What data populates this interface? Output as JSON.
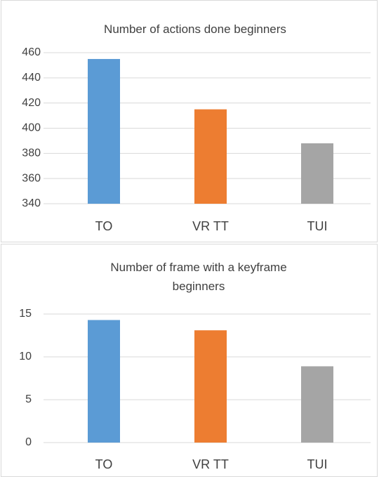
{
  "chart_data": [
    {
      "type": "bar",
      "title": "Number of actions done beginners",
      "categories": [
        "TO",
        "VR TT",
        "TUI"
      ],
      "values": [
        455,
        415,
        388
      ],
      "colors": [
        "#5b9bd5",
        "#ed7d31",
        "#a5a5a5"
      ],
      "ylim": [
        340,
        460
      ],
      "yticks": [
        340,
        360,
        380,
        400,
        420,
        440,
        460
      ],
      "grid": true
    },
    {
      "type": "bar",
      "title": "Number of frame with a keyframe beginners",
      "categories": [
        "TO",
        "VR TT",
        "TUI"
      ],
      "values": [
        14.3,
        13.1,
        8.9
      ],
      "colors": [
        "#5b9bd5",
        "#ed7d31",
        "#a5a5a5"
      ],
      "ylim": [
        0,
        15
      ],
      "yticks": [
        0,
        5,
        10,
        15
      ],
      "grid": true
    }
  ]
}
